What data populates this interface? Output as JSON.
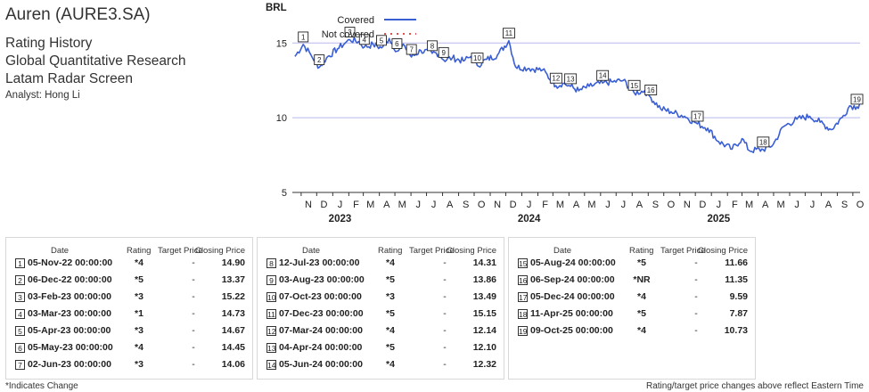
{
  "header": {
    "title": "Auren (AURE3.SA)",
    "line1": "Rating History",
    "line2": "Global Quantitative Research",
    "line3": "Latam Radar Screen",
    "analyst": "Analyst: Hong Li"
  },
  "chart_data": {
    "type": "line",
    "ylabel": "BRL",
    "ylim": [
      5,
      17.4
    ],
    "yticks": [
      5,
      10,
      15
    ],
    "x_range": [
      "2022-10-15",
      "2025-10-15"
    ],
    "month_ticks": [
      "N",
      "D",
      "J",
      "F",
      "M",
      "A",
      "M",
      "J",
      "J",
      "A",
      "S",
      "O",
      "N",
      "D",
      "J",
      "F",
      "M",
      "A",
      "M",
      "J",
      "J",
      "A",
      "S",
      "O",
      "N",
      "D",
      "J",
      "F",
      "M",
      "A",
      "M",
      "J",
      "J",
      "A",
      "S",
      "O"
    ],
    "year_labels": [
      "2023",
      "2024",
      "2025"
    ],
    "grid": true,
    "legend_position": "top-left",
    "legend": [
      {
        "label": "Covered",
        "color": "#3a5fd4",
        "style": "solid"
      },
      {
        "label": "Not covered",
        "color": "#e05050",
        "style": "dotted"
      }
    ],
    "series": [
      {
        "color": "#3a5fd4",
        "points": [
          [
            "2022-10-20",
            14.1
          ],
          [
            "2022-11-05",
            14.9
          ],
          [
            "2022-11-20",
            14.2
          ],
          [
            "2022-12-06",
            13.37
          ],
          [
            "2022-12-20",
            14.0
          ],
          [
            "2023-01-10",
            14.6
          ],
          [
            "2023-01-25",
            15.0
          ],
          [
            "2023-02-03",
            15.22
          ],
          [
            "2023-02-20",
            15.1
          ],
          [
            "2023-03-03",
            14.73
          ],
          [
            "2023-03-20",
            14.9
          ],
          [
            "2023-04-05",
            14.67
          ],
          [
            "2023-04-20",
            15.3
          ],
          [
            "2023-05-05",
            14.45
          ],
          [
            "2023-05-20",
            14.8
          ],
          [
            "2023-06-02",
            14.06
          ],
          [
            "2023-06-20",
            14.5
          ],
          [
            "2023-07-12",
            14.31
          ],
          [
            "2023-07-25",
            14.3
          ],
          [
            "2023-08-03",
            13.86
          ],
          [
            "2023-08-20",
            14.0
          ],
          [
            "2023-09-10",
            13.8
          ],
          [
            "2023-09-25",
            14.1
          ],
          [
            "2023-10-07",
            13.49
          ],
          [
            "2023-10-25",
            13.9
          ],
          [
            "2023-11-15",
            14.2
          ],
          [
            "2023-12-07",
            15.15
          ],
          [
            "2023-12-20",
            13.4
          ],
          [
            "2024-01-15",
            13.3
          ],
          [
            "2024-02-10",
            13.2
          ],
          [
            "2024-03-07",
            12.14
          ],
          [
            "2024-03-20",
            12.3
          ],
          [
            "2024-04-04",
            12.1
          ],
          [
            "2024-04-20",
            11.8
          ],
          [
            "2024-05-10",
            12.1
          ],
          [
            "2024-06-05",
            12.32
          ],
          [
            "2024-06-25",
            12.4
          ],
          [
            "2024-07-15",
            12.5
          ],
          [
            "2024-08-05",
            11.66
          ],
          [
            "2024-08-25",
            11.8
          ],
          [
            "2024-09-06",
            11.35
          ],
          [
            "2024-09-25",
            10.6
          ],
          [
            "2024-10-15",
            10.4
          ],
          [
            "2024-11-10",
            10.1
          ],
          [
            "2024-12-05",
            9.59
          ],
          [
            "2024-12-25",
            9.3
          ],
          [
            "2025-01-15",
            8.4
          ],
          [
            "2025-02-10",
            7.9
          ],
          [
            "2025-03-01",
            8.6
          ],
          [
            "2025-03-15",
            7.8
          ],
          [
            "2025-04-11",
            7.87
          ],
          [
            "2025-04-30",
            8.2
          ],
          [
            "2025-05-20",
            9.4
          ],
          [
            "2025-06-15",
            9.9
          ],
          [
            "2025-07-10",
            10.1
          ],
          [
            "2025-07-30",
            9.7
          ],
          [
            "2025-08-20",
            9.2
          ],
          [
            "2025-09-10",
            10.0
          ],
          [
            "2025-09-25",
            10.8
          ],
          [
            "2025-10-09",
            10.73
          ],
          [
            "2025-10-14",
            10.9
          ]
        ]
      }
    ],
    "markers": [
      {
        "n": "1",
        "date": "2022-11-05",
        "price": 14.9
      },
      {
        "n": "2",
        "date": "2022-12-06",
        "price": 13.37
      },
      {
        "n": "3",
        "date": "2023-02-03",
        "price": 15.22
      },
      {
        "n": "4",
        "date": "2023-03-03",
        "price": 14.73
      },
      {
        "n": "5",
        "date": "2023-04-05",
        "price": 14.67
      },
      {
        "n": "6",
        "date": "2023-05-05",
        "price": 14.45
      },
      {
        "n": "7",
        "date": "2023-06-02",
        "price": 14.06
      },
      {
        "n": "8",
        "date": "2023-07-12",
        "price": 14.31
      },
      {
        "n": "9",
        "date": "2023-08-03",
        "price": 13.86
      },
      {
        "n": "10",
        "date": "2023-10-07",
        "price": 13.49
      },
      {
        "n": "11",
        "date": "2023-12-07",
        "price": 15.15
      },
      {
        "n": "12",
        "date": "2024-03-07",
        "price": 12.14
      },
      {
        "n": "13",
        "date": "2024-04-04",
        "price": 12.1
      },
      {
        "n": "14",
        "date": "2024-06-05",
        "price": 12.32
      },
      {
        "n": "15",
        "date": "2024-08-05",
        "price": 11.66
      },
      {
        "n": "16",
        "date": "2024-09-06",
        "price": 11.35
      },
      {
        "n": "17",
        "date": "2024-12-05",
        "price": 9.59
      },
      {
        "n": "18",
        "date": "2025-04-11",
        "price": 7.87
      },
      {
        "n": "19",
        "date": "2025-10-09",
        "price": 10.73
      }
    ]
  },
  "table_headers": {
    "date": "Date",
    "rating": "Rating",
    "target": "Target Price",
    "closing": "Closing Price"
  },
  "tables": [
    [
      {
        "n": "1",
        "date": "05-Nov-22 00:00:00",
        "rating": "*4",
        "target": "-",
        "close": "14.90"
      },
      {
        "n": "2",
        "date": "06-Dec-22 00:00:00",
        "rating": "*5",
        "target": "-",
        "close": "13.37"
      },
      {
        "n": "3",
        "date": "03-Feb-23 00:00:00",
        "rating": "*3",
        "target": "-",
        "close": "15.22"
      },
      {
        "n": "4",
        "date": "03-Mar-23 00:00:00",
        "rating": "*1",
        "target": "-",
        "close": "14.73"
      },
      {
        "n": "5",
        "date": "05-Apr-23 00:00:00",
        "rating": "*3",
        "target": "-",
        "close": "14.67"
      },
      {
        "n": "6",
        "date": "05-May-23 00:00:00",
        "rating": "*4",
        "target": "-",
        "close": "14.45"
      },
      {
        "n": "7",
        "date": "02-Jun-23 00:00:00",
        "rating": "*3",
        "target": "-",
        "close": "14.06"
      }
    ],
    [
      {
        "n": "8",
        "date": "12-Jul-23 00:00:00",
        "rating": "*4",
        "target": "-",
        "close": "14.31"
      },
      {
        "n": "9",
        "date": "03-Aug-23 00:00:00",
        "rating": "*5",
        "target": "-",
        "close": "13.86"
      },
      {
        "n": "10",
        "date": "07-Oct-23 00:00:00",
        "rating": "*3",
        "target": "-",
        "close": "13.49"
      },
      {
        "n": "11",
        "date": "07-Dec-23 00:00:00",
        "rating": "*5",
        "target": "-",
        "close": "15.15"
      },
      {
        "n": "12",
        "date": "07-Mar-24 00:00:00",
        "rating": "*4",
        "target": "-",
        "close": "12.14"
      },
      {
        "n": "13",
        "date": "04-Apr-24 00:00:00",
        "rating": "*5",
        "target": "-",
        "close": "12.10"
      },
      {
        "n": "14",
        "date": "05-Jun-24 00:00:00",
        "rating": "*4",
        "target": "-",
        "close": "12.32"
      }
    ],
    [
      {
        "n": "15",
        "date": "05-Aug-24 00:00:00",
        "rating": "*5",
        "target": "-",
        "close": "11.66"
      },
      {
        "n": "16",
        "date": "06-Sep-24 00:00:00",
        "rating": "*NR",
        "target": "-",
        "close": "11.35"
      },
      {
        "n": "17",
        "date": "05-Dec-24 00:00:00",
        "rating": "*4",
        "target": "-",
        "close": "9.59"
      },
      {
        "n": "18",
        "date": "11-Apr-25 00:00:00",
        "rating": "*5",
        "target": "-",
        "close": "7.87"
      },
      {
        "n": "19",
        "date": "09-Oct-25 00:00:00",
        "rating": "*4",
        "target": "-",
        "close": "10.73"
      }
    ]
  ],
  "footer": {
    "left": "*Indicates Change",
    "right": "Rating/target price changes above reflect Eastern Time"
  }
}
